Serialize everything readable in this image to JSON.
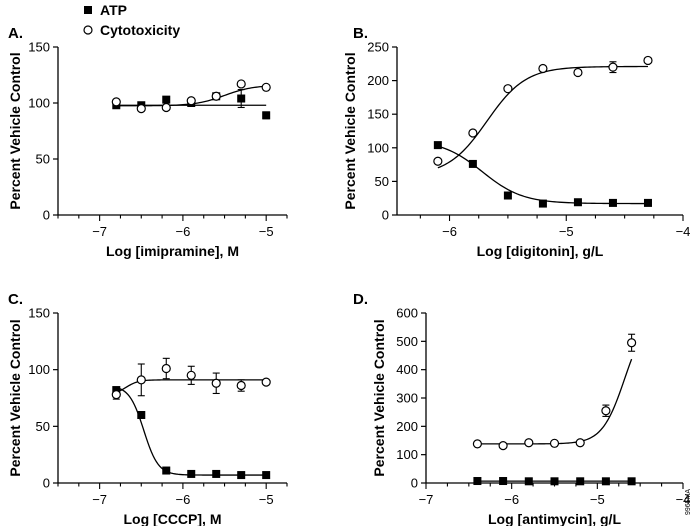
{
  "legend": [
    {
      "label": "ATP",
      "marker": "filled-square"
    },
    {
      "label": "Cytotoxicity",
      "marker": "open-circle"
    }
  ],
  "figure_code": "9965MA",
  "chart_data": [
    {
      "type": "scatter",
      "panel": "A.",
      "xlabel": "Log [imipramine], M",
      "ylabel": "Percent Vehicle Control",
      "xlim": [
        -7.5,
        -4.75
      ],
      "ylim": [
        0,
        150
      ],
      "xticks": [
        -7,
        -6,
        -5
      ],
      "yticks": [
        0,
        50,
        100,
        150
      ],
      "series": [
        {
          "name": "ATP",
          "marker": "filled-square",
          "x": [
            -6.8,
            -6.5,
            -6.2,
            -5.9,
            -5.6,
            -5.3,
            -5.0
          ],
          "y": [
            98,
            98,
            103,
            100,
            106,
            104,
            89
          ],
          "err": [
            0,
            0,
            0,
            0,
            0,
            8,
            3
          ],
          "curve": {
            "bottom": 98,
            "top": 98,
            "logEC50": -5.5,
            "hill": 1
          }
        },
        {
          "name": "Cytotoxicity",
          "marker": "open-circle",
          "x": [
            -6.8,
            -6.5,
            -6.2,
            -5.9,
            -5.6,
            -5.3,
            -5.0
          ],
          "y": [
            101,
            95,
            96,
            102,
            106,
            117,
            114
          ],
          "err": [
            0,
            0,
            0,
            0,
            0,
            0,
            0
          ],
          "curve": {
            "bottom": 97.5,
            "top": 116,
            "logEC50": -5.5,
            "hill": 2.5
          }
        }
      ]
    },
    {
      "type": "scatter",
      "panel": "B.",
      "xlabel": "Log [digitonin], g/L",
      "ylabel": "Percent Vehicle Control",
      "xlim": [
        -6.45,
        -4.0
      ],
      "ylim": [
        0,
        250
      ],
      "xticks": [
        -6,
        -5,
        -4
      ],
      "yticks": [
        0,
        50,
        100,
        150,
        200,
        250
      ],
      "series": [
        {
          "name": "ATP",
          "marker": "filled-square",
          "x": [
            -6.1,
            -5.8,
            -5.5,
            -5.2,
            -4.9,
            -4.6,
            -4.3
          ],
          "y": [
            104,
            76,
            29,
            17,
            19,
            18,
            18
          ],
          "err": [
            0,
            0,
            0,
            0,
            0,
            0,
            0
          ],
          "curve": {
            "bottom": 17,
            "top": 112,
            "logEC50": -5.72,
            "hill": -2.5
          }
        },
        {
          "name": "Cytotoxicity",
          "marker": "open-circle",
          "x": [
            -6.1,
            -5.8,
            -5.5,
            -5.2,
            -4.9,
            -4.6,
            -4.3
          ],
          "y": [
            80,
            122,
            188,
            218,
            212,
            220,
            230
          ],
          "err": [
            0,
            0,
            0,
            0,
            0,
            8,
            0
          ],
          "curve": {
            "bottom": 58,
            "top": 221,
            "logEC50": -5.68,
            "hill": 2.6
          }
        }
      ]
    },
    {
      "type": "scatter",
      "panel": "C.",
      "xlabel": "Log [CCCP], M",
      "ylabel": "Percent Vehicle Control",
      "xlim": [
        -7.5,
        -4.75
      ],
      "ylim": [
        0,
        150
      ],
      "xticks": [
        -7,
        -6,
        -5
      ],
      "yticks": [
        0,
        50,
        100,
        150
      ],
      "series": [
        {
          "name": "ATP",
          "marker": "filled-square",
          "x": [
            -6.8,
            -6.5,
            -6.2,
            -5.9,
            -5.6,
            -5.3,
            -5.0
          ],
          "y": [
            82,
            60,
            11,
            8,
            8,
            7,
            7
          ],
          "err": [
            0,
            0,
            0,
            0,
            0,
            0,
            0
          ],
          "curve": {
            "bottom": 7,
            "top": 86,
            "logEC50": -6.47,
            "hill": -5
          }
        },
        {
          "name": "Cytotoxicity",
          "marker": "open-circle",
          "x": [
            -6.8,
            -6.5,
            -6.2,
            -5.9,
            -5.6,
            -5.3,
            -5.0
          ],
          "y": [
            78,
            91,
            101,
            95,
            88,
            86,
            89
          ],
          "err": [
            4,
            14,
            9,
            8,
            9,
            5,
            0
          ],
          "curve": {
            "bottom": 78,
            "top": 91,
            "logEC50": -6.68,
            "hill": 6
          }
        }
      ]
    },
    {
      "type": "scatter",
      "panel": "D.",
      "xlabel": "Log [antimycin], g/L",
      "ylabel": "Percent Vehicle Control",
      "xlim": [
        -7.0,
        -4.0
      ],
      "ylim": [
        0,
        600
      ],
      "xticks": [
        -7,
        -6,
        -5,
        -4
      ],
      "yticks": [
        0,
        100,
        200,
        300,
        400,
        500,
        600
      ],
      "series": [
        {
          "name": "ATP",
          "marker": "filled-square",
          "x": [
            -6.4,
            -6.1,
            -5.8,
            -5.5,
            -5.2,
            -4.9,
            -4.6
          ],
          "y": [
            7,
            7,
            6,
            6,
            6,
            6,
            6
          ],
          "err": [
            0,
            0,
            0,
            0,
            0,
            0,
            0
          ],
          "curve": {
            "bottom": 6.5,
            "top": 6.5,
            "logEC50": -5.5,
            "hill": 1
          }
        },
        {
          "name": "Cytotoxicity",
          "marker": "open-circle",
          "x": [
            -6.4,
            -6.1,
            -5.8,
            -5.5,
            -5.2,
            -4.9,
            -4.6
          ],
          "y": [
            138,
            132,
            142,
            140,
            142,
            255,
            495
          ],
          "err": [
            0,
            0,
            0,
            0,
            0,
            20,
            30
          ],
          "curve": {
            "bottom": 138,
            "top": 600,
            "logEC50": -4.68,
            "hill": 3.3
          }
        }
      ]
    }
  ]
}
